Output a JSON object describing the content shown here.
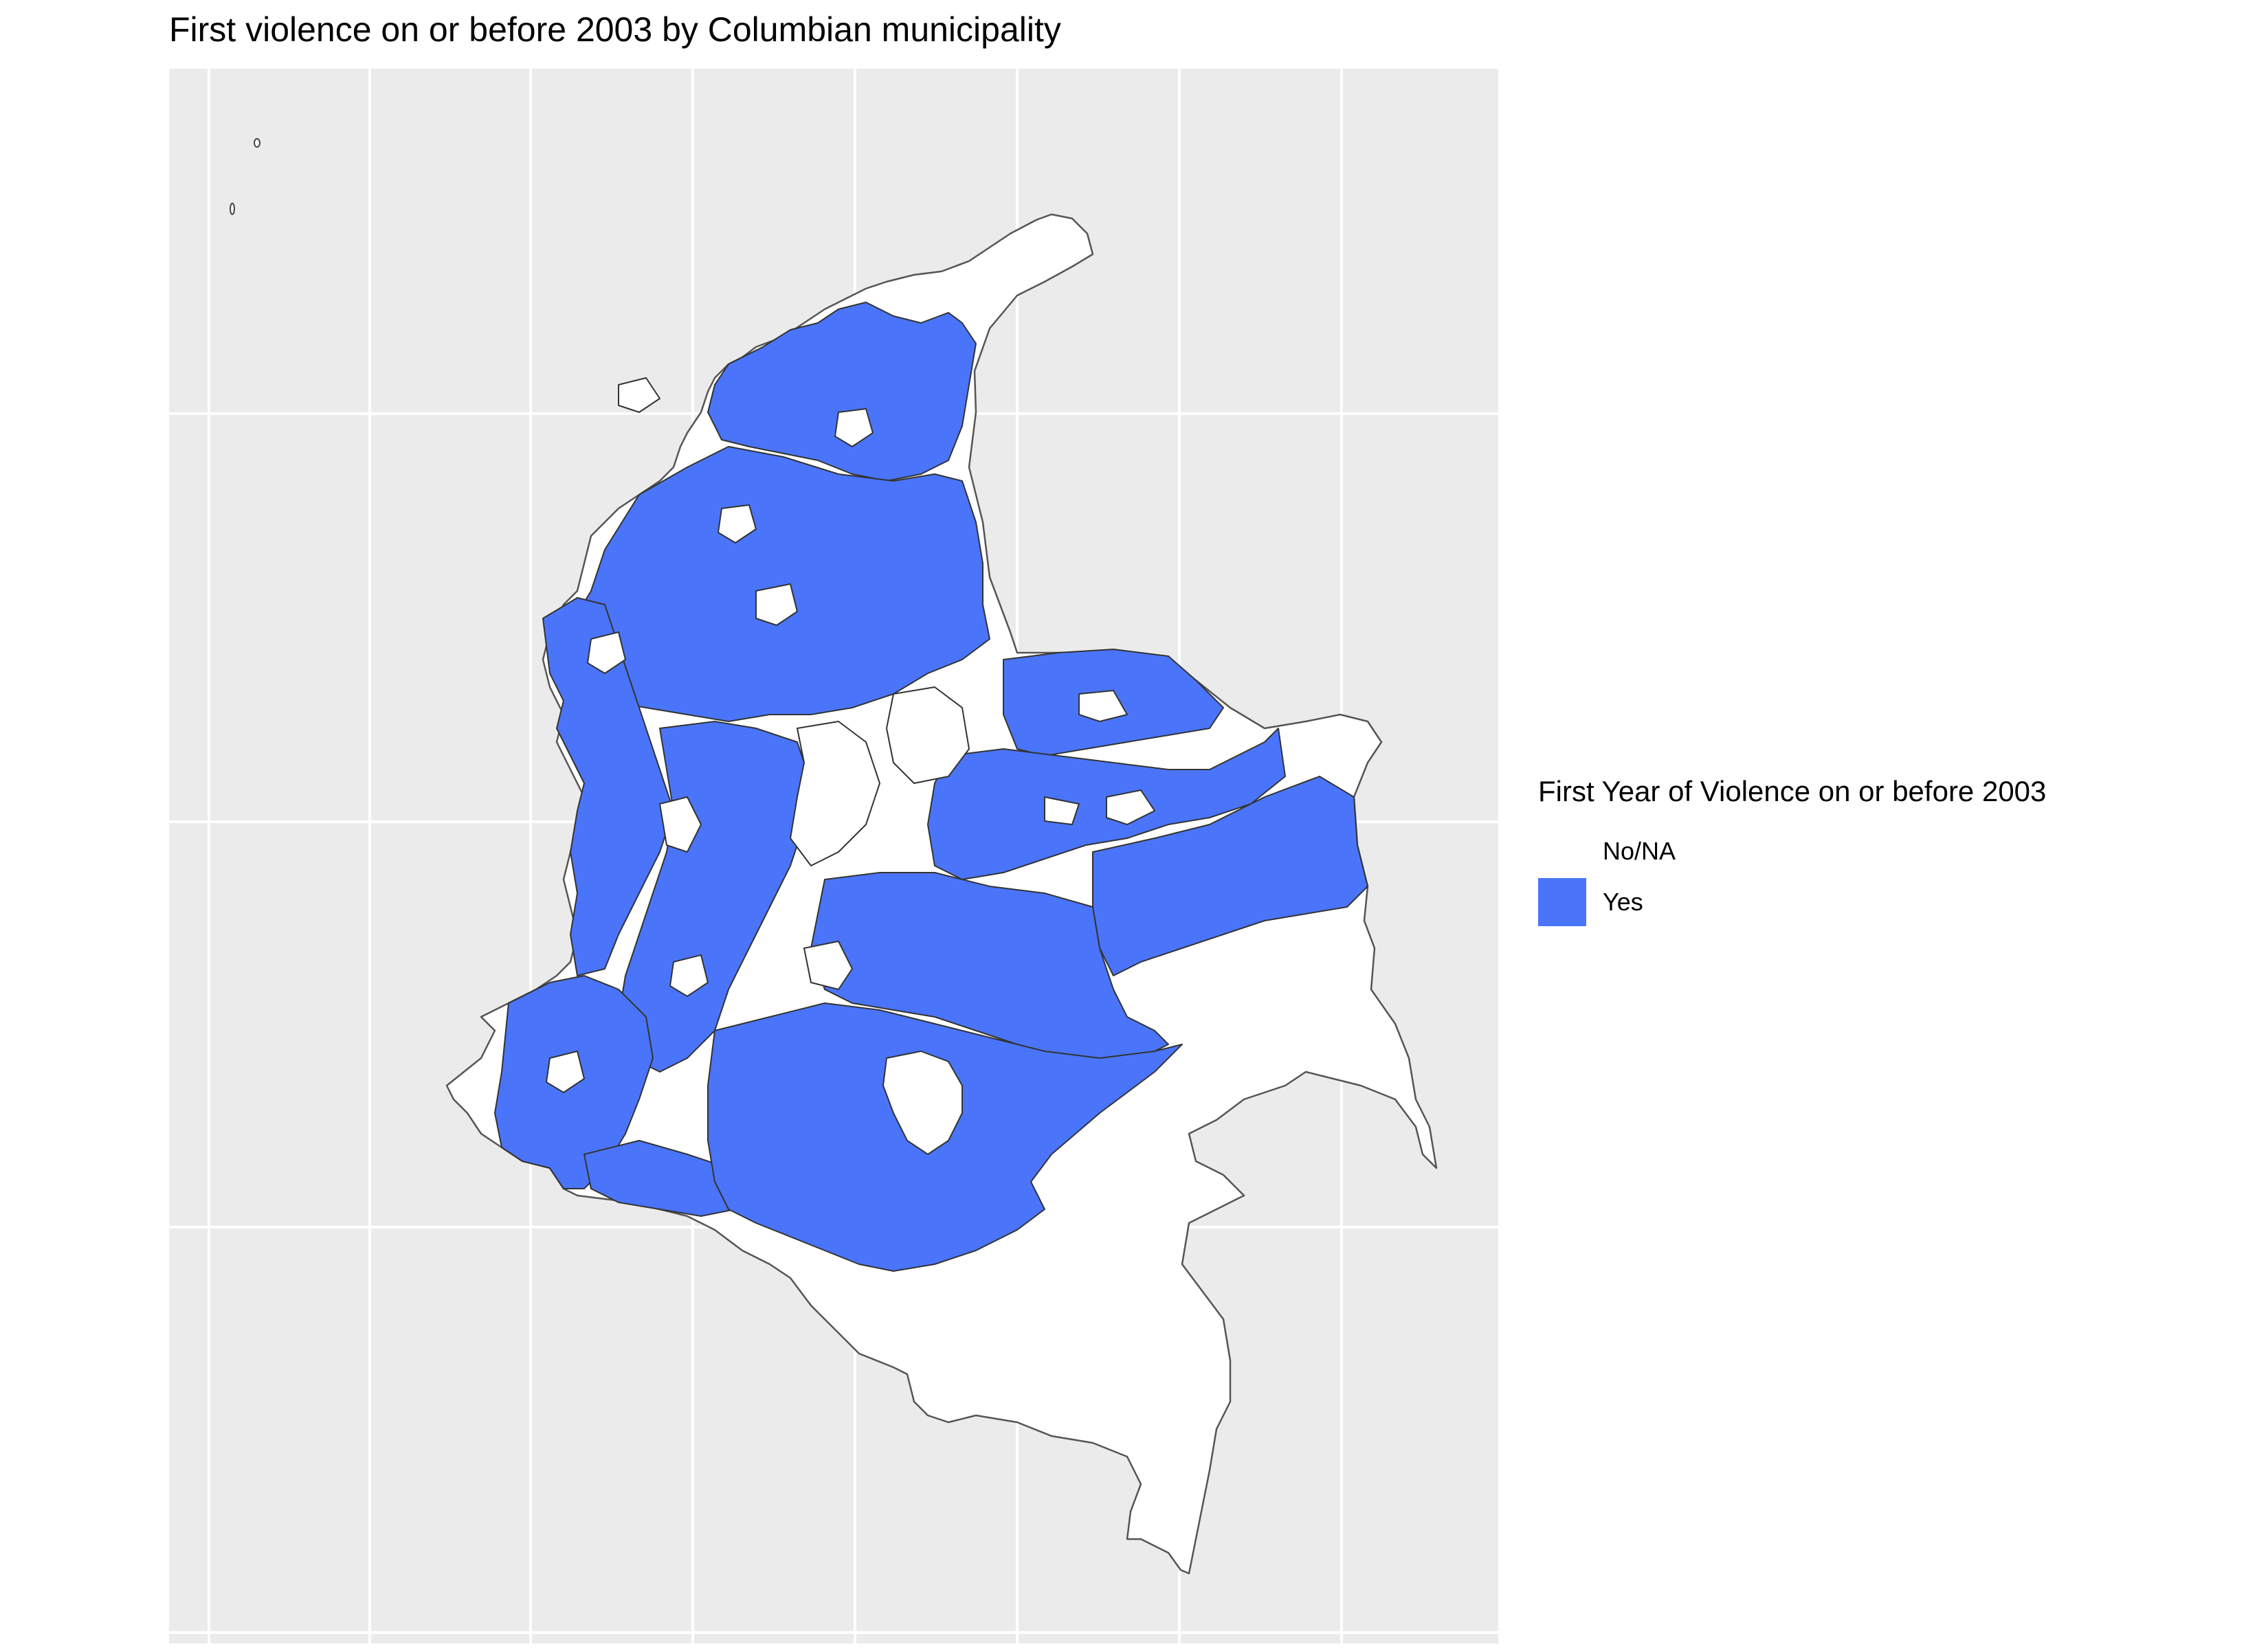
{
  "title": "First violence on or before 2003 by Columbian municipality",
  "legend": {
    "title": "First Year of Violence on or before 2003",
    "items": [
      {
        "label": "No/NA",
        "color": "#ffffff"
      },
      {
        "label": "Yes",
        "color": "#4a75fa"
      }
    ]
  },
  "colors": {
    "panel_background": "#ebebeb",
    "gridline": "#ffffff",
    "no_fill": "#ffffff",
    "yes_fill": "#4a75fa",
    "border": "#555555"
  }
}
